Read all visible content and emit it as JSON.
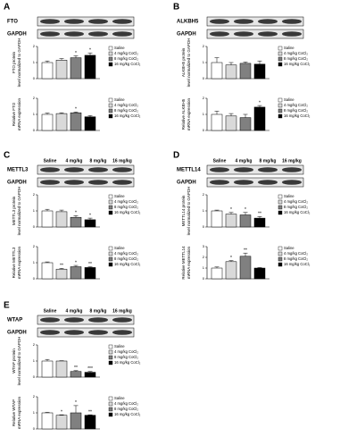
{
  "panels": [
    {
      "letter": "A",
      "blot": {
        "proteins": [
          "FTO",
          "GAPDH"
        ]
      }
    },
    {
      "letter": "B",
      "blot": {
        "proteins": [
          "ALKBH5",
          "GAPDH"
        ]
      }
    },
    {
      "letter": "C",
      "blot": {
        "headers": [
          "Saline",
          "4 mg/kg",
          "8 mg/kg",
          "16 mg/kg"
        ],
        "proteins": [
          "METTL3",
          "GAPDH"
        ]
      }
    },
    {
      "letter": "D",
      "blot": {
        "headers": [
          "Saline",
          "4 mg/kg",
          "8 mg/kg",
          "16 mg/kg"
        ],
        "proteins": [
          "METTL14",
          "GAPDH"
        ]
      }
    },
    {
      "letter": "E",
      "blot": {
        "headers": [
          "Saline",
          "4 mg/kg",
          "8 mg/kg",
          "16 mg/kg"
        ],
        "proteins": [
          "WTAP",
          "GAPDH"
        ]
      }
    }
  ],
  "chart_data": [
    {
      "type": "bar",
      "ylabel": [
        "FTO protein",
        "level normalized to GAPDH"
      ],
      "ylim": [
        0,
        2
      ],
      "yticks": [
        0,
        1,
        2
      ],
      "series": [
        {
          "name": "Saline",
          "color": "#ffffff",
          "values": [
            1
          ],
          "errors": [
            0.1
          ]
        },
        {
          "name": "4 mg/kg CoCl₂",
          "color": "#d9d9d9",
          "values": [
            1.15
          ],
          "errors": [
            0.1
          ]
        },
        {
          "name": "8 mg/kg CoCl₂",
          "color": "#808080",
          "values": [
            1.3
          ],
          "errors": [
            0.12
          ],
          "significance": "*"
        },
        {
          "name": "16 mg/kg CoCl₂",
          "color": "#000000",
          "values": [
            1.45
          ],
          "errors": [
            0.15
          ],
          "significance": "*"
        }
      ]
    },
    {
      "type": "bar",
      "ylabel": [
        "Relative FTO",
        "mRNA expression"
      ],
      "ylim": [
        0,
        2
      ],
      "yticks": [
        0,
        1,
        2
      ],
      "series": [
        {
          "name": "Saline",
          "color": "#ffffff",
          "values": [
            1
          ],
          "errors": [
            0.08
          ]
        },
        {
          "name": "4 mg/kg CoCl₂",
          "color": "#d9d9d9",
          "values": [
            1.05
          ],
          "errors": [
            0.05
          ]
        },
        {
          "name": "8 mg/kg CoCl₂",
          "color": "#808080",
          "values": [
            1.1
          ],
          "errors": [
            0.05
          ],
          "significance": "*"
        },
        {
          "name": "16 mg/kg CoCl₂",
          "color": "#000000",
          "values": [
            0.85
          ],
          "errors": [
            0.08
          ]
        }
      ]
    },
    {
      "type": "bar",
      "ylabel": [
        "ALKBH5 protein",
        "level normalized to GAPDH"
      ],
      "ylim": [
        0,
        2
      ],
      "yticks": [
        0,
        1,
        2
      ],
      "series": [
        {
          "name": "Saline",
          "color": "#ffffff",
          "values": [
            1
          ],
          "errors": [
            0.3
          ]
        },
        {
          "name": "4 mg/kg CoCl₂",
          "color": "#d9d9d9",
          "values": [
            0.85
          ],
          "errors": [
            0.15
          ]
        },
        {
          "name": "8 mg/kg CoCl₂",
          "color": "#808080",
          "values": [
            0.95
          ],
          "errors": [
            0.08
          ]
        },
        {
          "name": "16 mg/kg CoCl₂",
          "color": "#000000",
          "values": [
            0.9
          ],
          "errors": [
            0.2
          ]
        }
      ]
    },
    {
      "type": "bar",
      "ylabel": [
        "Relative ALKBH5",
        "mRNA expression"
      ],
      "ylim": [
        0,
        2
      ],
      "yticks": [
        0,
        1,
        2
      ],
      "series": [
        {
          "name": "Saline",
          "color": "#ffffff",
          "values": [
            1
          ],
          "errors": [
            0.2
          ]
        },
        {
          "name": "4 mg/kg CoCl₂",
          "color": "#d9d9d9",
          "values": [
            0.9
          ],
          "errors": [
            0.15
          ]
        },
        {
          "name": "8 mg/kg CoCl₂",
          "color": "#808080",
          "values": [
            0.8
          ],
          "errors": [
            0.2
          ]
        },
        {
          "name": "16 mg/kg CoCl₂",
          "color": "#000000",
          "values": [
            1.45
          ],
          "errors": [
            0.1
          ],
          "significance": "*"
        }
      ]
    },
    {
      "type": "bar",
      "ylabel": [
        "METTL3 protein",
        "level normalized to GAPDH"
      ],
      "ylim": [
        0,
        2
      ],
      "yticks": [
        0,
        1,
        2
      ],
      "series": [
        {
          "name": "Saline",
          "color": "#ffffff",
          "values": [
            1
          ],
          "errors": [
            0.1
          ]
        },
        {
          "name": "4 mg/kg CoCl₂",
          "color": "#d9d9d9",
          "values": [
            0.95
          ],
          "errors": [
            0.1
          ]
        },
        {
          "name": "8 mg/kg CoCl₂",
          "color": "#808080",
          "values": [
            0.6
          ],
          "errors": [
            0.1
          ],
          "significance": "*"
        },
        {
          "name": "16 mg/kg CoCl₂",
          "color": "#000000",
          "values": [
            0.45
          ],
          "errors": [
            0.1
          ],
          "significance": "*"
        }
      ]
    },
    {
      "type": "bar",
      "ylabel": [
        "Relative METTL3",
        "mRNA expression"
      ],
      "ylim": [
        0,
        2
      ],
      "yticks": [
        0,
        1,
        2
      ],
      "series": [
        {
          "name": "Saline",
          "color": "#ffffff",
          "values": [
            1
          ],
          "errors": [
            0.05
          ]
        },
        {
          "name": "4 mg/kg CoCl₂",
          "color": "#d9d9d9",
          "values": [
            0.6
          ],
          "errors": [
            0.05
          ],
          "significance": "**"
        },
        {
          "name": "8 mg/kg CoCl₂",
          "color": "#808080",
          "values": [
            0.75
          ],
          "errors": [
            0.08
          ],
          "significance": "*"
        },
        {
          "name": "16 mg/kg CoCl₂",
          "color": "#000000",
          "values": [
            0.7
          ],
          "errors": [
            0.05
          ],
          "significance": "**"
        }
      ]
    },
    {
      "type": "bar",
      "ylabel": [
        "METTL14 protein",
        "level normalized to GAPDH"
      ],
      "ylim": [
        0,
        2
      ],
      "yticks": [
        0,
        1,
        2
      ],
      "series": [
        {
          "name": "Saline",
          "color": "#ffffff",
          "values": [
            1
          ],
          "errors": [
            0.05
          ]
        },
        {
          "name": "4 mg/kg CoCl₂",
          "color": "#d9d9d9",
          "values": [
            0.8
          ],
          "errors": [
            0.1
          ],
          "significance": "*"
        },
        {
          "name": "8 mg/kg CoCl₂",
          "color": "#808080",
          "values": [
            0.75
          ],
          "errors": [
            0.15
          ],
          "significance": "*"
        },
        {
          "name": "16 mg/kg CoCl₂",
          "color": "#000000",
          "values": [
            0.55
          ],
          "errors": [
            0.1
          ],
          "significance": "**"
        }
      ]
    },
    {
      "type": "bar",
      "ylabel": [
        "Relative METTL14",
        "mRNA expression"
      ],
      "ylim": [
        0,
        3
      ],
      "yticks": [
        0,
        1,
        2,
        3
      ],
      "series": [
        {
          "name": "Saline",
          "color": "#ffffff",
          "values": [
            1
          ],
          "errors": [
            0.1
          ]
        },
        {
          "name": "4 mg/kg CoCl₂",
          "color": "#d9d9d9",
          "values": [
            1.6
          ],
          "errors": [
            0.1
          ],
          "significance": "*"
        },
        {
          "name": "8 mg/kg CoCl₂",
          "color": "#808080",
          "values": [
            2.1
          ],
          "errors": [
            0.3
          ],
          "significance": "**"
        },
        {
          "name": "16 mg/kg CoCl₂",
          "color": "#000000",
          "values": [
            1
          ],
          "errors": [
            0.05
          ]
        }
      ]
    },
    {
      "type": "bar",
      "ylabel": [
        "WTAP protein",
        "level normalized to GAPDH"
      ],
      "ylim": [
        0,
        2
      ],
      "yticks": [
        0,
        1,
        2
      ],
      "series": [
        {
          "name": "Saline",
          "color": "#ffffff",
          "values": [
            1
          ],
          "errors": [
            0.1
          ]
        },
        {
          "name": "4 mg/kg CoCl₂",
          "color": "#d9d9d9",
          "values": [
            1
          ],
          "errors": [
            0.02
          ]
        },
        {
          "name": "8 mg/kg CoCl₂",
          "color": "#808080",
          "values": [
            0.35
          ],
          "errors": [
            0.05
          ],
          "significance": "**"
        },
        {
          "name": "16 mg/kg CoCl₂",
          "color": "#000000",
          "values": [
            0.3
          ],
          "errors": [
            0.05
          ],
          "significance": "***"
        }
      ]
    },
    {
      "type": "bar",
      "ylabel": [
        "Relative WTAP",
        "mRNA expression"
      ],
      "ylim": [
        0,
        2
      ],
      "yticks": [
        0,
        1,
        2
      ],
      "series": [
        {
          "name": "Saline",
          "color": "#ffffff",
          "values": [
            1
          ],
          "errors": [
            0.03
          ]
        },
        {
          "name": "4 mg/kg CoCl₂",
          "color": "#d9d9d9",
          "values": [
            0.85
          ],
          "errors": [
            0.03
          ],
          "significance": "*"
        },
        {
          "name": "8 mg/kg CoCl₂",
          "color": "#808080",
          "values": [
            1
          ],
          "errors": [
            0.45
          ],
          "significance": "*"
        },
        {
          "name": "16 mg/kg CoCl₂",
          "color": "#000000",
          "values": [
            0.85
          ],
          "errors": [
            0.03
          ],
          "significance": "**"
        }
      ]
    }
  ]
}
